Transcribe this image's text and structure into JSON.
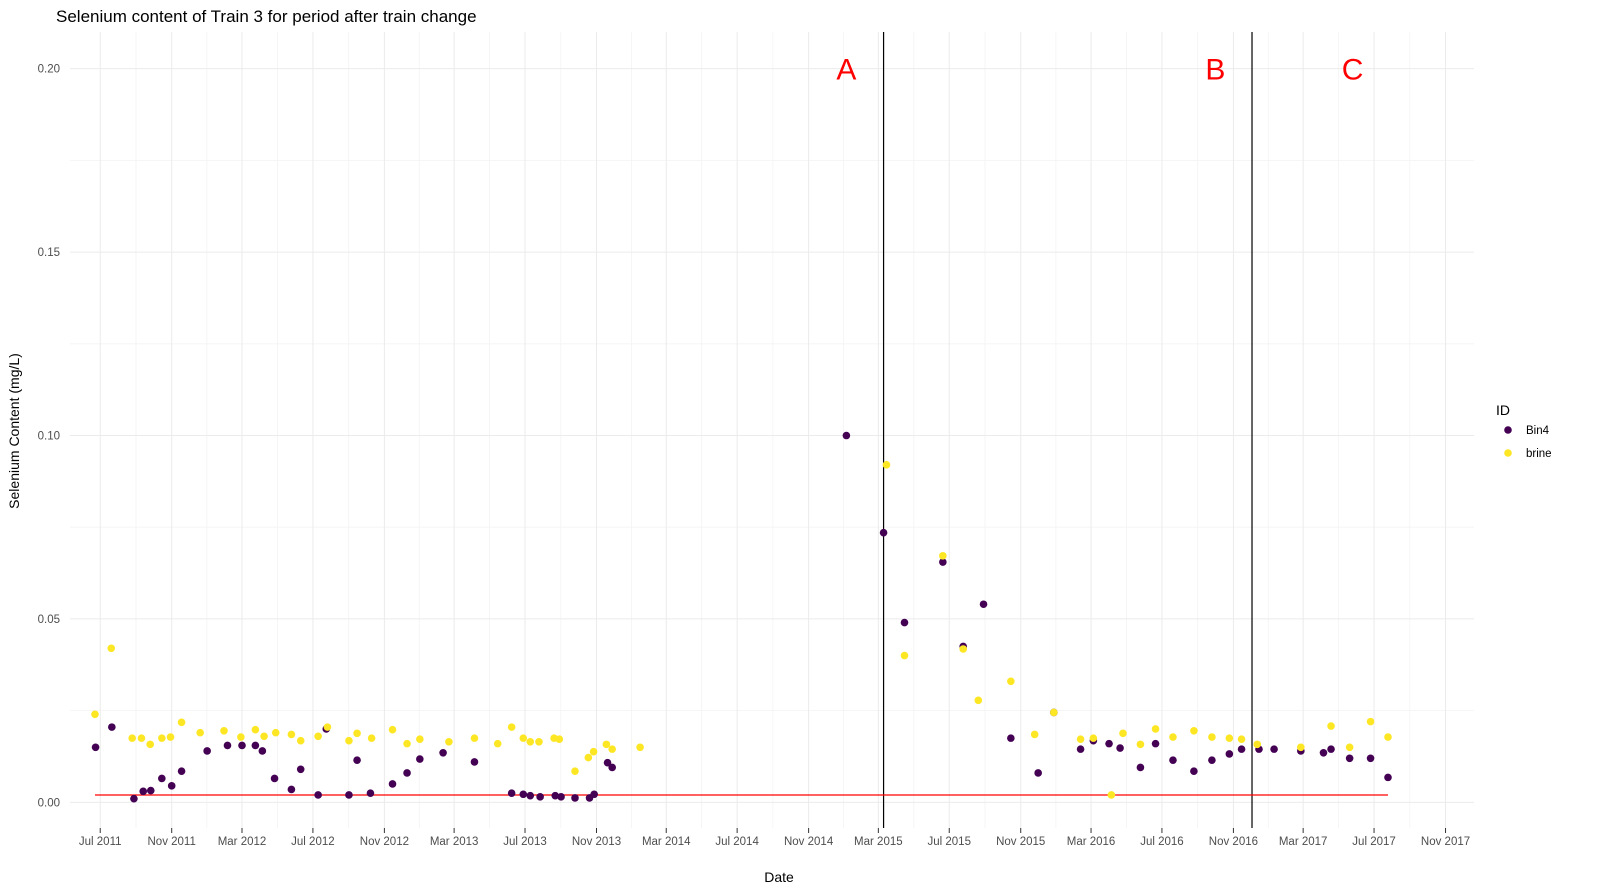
{
  "chart_data": {
    "type": "scatter",
    "title": "Selenium content of Train 3 for period after train change",
    "xlabel": "Date",
    "ylabel": "Selenium Content (mg/L)",
    "x_axis": {
      "kind": "date",
      "range": [
        "2011-05-10",
        "2017-12-20"
      ],
      "ticks": [
        "2011-07-01",
        "2011-11-01",
        "2012-03-01",
        "2012-07-01",
        "2012-11-01",
        "2013-03-01",
        "2013-07-01",
        "2013-11-01",
        "2014-03-01",
        "2014-07-01",
        "2014-11-01",
        "2015-03-01",
        "2015-07-01",
        "2015-11-01",
        "2016-03-01",
        "2016-07-01",
        "2016-11-01",
        "2017-03-01",
        "2017-07-01",
        "2017-11-01"
      ],
      "tick_labels": [
        "Jul 2011",
        "Nov 2011",
        "Mar 2012",
        "Jul 2012",
        "Nov 2012",
        "Mar 2013",
        "Jul 2013",
        "Nov 2013",
        "Mar 2014",
        "Jul 2014",
        "Nov 2014",
        "Mar 2015",
        "Jul 2015",
        "Nov 2015",
        "Mar 2016",
        "Jul 2016",
        "Nov 2016",
        "Mar 2017",
        "Jul 2017",
        "Nov 2017"
      ]
    },
    "y_axis": {
      "range": [
        -0.007,
        0.21
      ],
      "ticks": [
        0,
        0.05,
        0.1,
        0.15,
        0.2
      ],
      "tick_labels": [
        "0.00",
        "0.05",
        "0.10",
        "0.15",
        "0.20"
      ]
    },
    "grid": true,
    "legend": {
      "title": "ID",
      "position": "right",
      "entries": [
        {
          "label": "Bin4",
          "color": "#440154"
        },
        {
          "label": "brine",
          "color": "#FDE725"
        }
      ]
    },
    "series": [
      {
        "name": "Bin4",
        "color": "#440154",
        "points": [
          {
            "x": "2011-06-23",
            "y": 0.015
          },
          {
            "x": "2011-07-21",
            "y": 0.0205
          },
          {
            "x": "2011-08-28",
            "y": 0.001
          },
          {
            "x": "2011-09-13",
            "y": 0.003
          },
          {
            "x": "2011-09-26",
            "y": 0.0032
          },
          {
            "x": "2011-10-15",
            "y": 0.0065
          },
          {
            "x": "2011-11-01",
            "y": 0.0045
          },
          {
            "x": "2011-11-18",
            "y": 0.0085
          },
          {
            "x": "2012-01-01",
            "y": 0.014
          },
          {
            "x": "2012-02-05",
            "y": 0.0155
          },
          {
            "x": "2012-03-01",
            "y": 0.0155
          },
          {
            "x": "2012-03-24",
            "y": 0.0155
          },
          {
            "x": "2012-04-05",
            "y": 0.014
          },
          {
            "x": "2012-04-26",
            "y": 0.0065
          },
          {
            "x": "2012-05-25",
            "y": 0.0035
          },
          {
            "x": "2012-06-10",
            "y": 0.009
          },
          {
            "x": "2012-07-10",
            "y": 0.002
          },
          {
            "x": "2012-07-24",
            "y": 0.02
          },
          {
            "x": "2012-09-01",
            "y": 0.002
          },
          {
            "x": "2012-09-15",
            "y": 0.0115
          },
          {
            "x": "2012-10-08",
            "y": 0.0025
          },
          {
            "x": "2012-11-15",
            "y": 0.005
          },
          {
            "x": "2012-12-10",
            "y": 0.008
          },
          {
            "x": "2013-01-01",
            "y": 0.0118
          },
          {
            "x": "2013-02-10",
            "y": 0.0135
          },
          {
            "x": "2013-04-05",
            "y": 0.011
          },
          {
            "x": "2013-06-08",
            "y": 0.0025
          },
          {
            "x": "2013-06-28",
            "y": 0.0022
          },
          {
            "x": "2013-07-10",
            "y": 0.0018
          },
          {
            "x": "2013-07-27",
            "y": 0.0015
          },
          {
            "x": "2013-08-22",
            "y": 0.0018
          },
          {
            "x": "2013-09-01",
            "y": 0.0015
          },
          {
            "x": "2013-09-25",
            "y": 0.0012
          },
          {
            "x": "2013-10-20",
            "y": 0.0012
          },
          {
            "x": "2013-10-28",
            "y": 0.0022
          },
          {
            "x": "2013-11-20",
            "y": 0.0108
          },
          {
            "x": "2013-11-28",
            "y": 0.0095
          },
          {
            "x": "2015-01-05",
            "y": 0.1
          },
          {
            "x": "2015-03-10",
            "y": 0.0735
          },
          {
            "x": "2015-04-15",
            "y": 0.049
          },
          {
            "x": "2015-06-20",
            "y": 0.0655
          },
          {
            "x": "2015-07-25",
            "y": 0.0425
          },
          {
            "x": "2015-08-29",
            "y": 0.054
          },
          {
            "x": "2015-10-15",
            "y": 0.0175
          },
          {
            "x": "2015-12-01",
            "y": 0.008
          },
          {
            "x": "2015-12-28",
            "y": 0.0245
          },
          {
            "x": "2016-02-12",
            "y": 0.0145
          },
          {
            "x": "2016-03-05",
            "y": 0.0168
          },
          {
            "x": "2016-04-01",
            "y": 0.016
          },
          {
            "x": "2016-04-20",
            "y": 0.0148
          },
          {
            "x": "2016-05-25",
            "y": 0.0095
          },
          {
            "x": "2016-06-20",
            "y": 0.016
          },
          {
            "x": "2016-07-20",
            "y": 0.0115
          },
          {
            "x": "2016-08-25",
            "y": 0.0085
          },
          {
            "x": "2016-09-25",
            "y": 0.0115
          },
          {
            "x": "2016-10-25",
            "y": 0.0132
          },
          {
            "x": "2016-11-15",
            "y": 0.0145
          },
          {
            "x": "2016-12-15",
            "y": 0.0145
          },
          {
            "x": "2017-01-10",
            "y": 0.0145
          },
          {
            "x": "2017-02-25",
            "y": 0.014
          },
          {
            "x": "2017-04-05",
            "y": 0.0135
          },
          {
            "x": "2017-04-18",
            "y": 0.0145
          },
          {
            "x": "2017-05-20",
            "y": 0.012
          },
          {
            "x": "2017-06-25",
            "y": 0.012
          },
          {
            "x": "2017-07-25",
            "y": 0.0068
          }
        ]
      },
      {
        "name": "brine",
        "color": "#FDE725",
        "points": [
          {
            "x": "2011-06-22",
            "y": 0.024
          },
          {
            "x": "2011-07-20",
            "y": 0.042
          },
          {
            "x": "2011-08-25",
            "y": 0.0175
          },
          {
            "x": "2011-09-10",
            "y": 0.0175
          },
          {
            "x": "2011-09-25",
            "y": 0.0158
          },
          {
            "x": "2011-10-15",
            "y": 0.0175
          },
          {
            "x": "2011-10-30",
            "y": 0.0178
          },
          {
            "x": "2011-11-18",
            "y": 0.0218
          },
          {
            "x": "2011-12-20",
            "y": 0.019
          },
          {
            "x": "2012-01-30",
            "y": 0.0195
          },
          {
            "x": "2012-02-28",
            "y": 0.0178
          },
          {
            "x": "2012-03-24",
            "y": 0.0198
          },
          {
            "x": "2012-04-08",
            "y": 0.018
          },
          {
            "x": "2012-04-28",
            "y": 0.019
          },
          {
            "x": "2012-05-25",
            "y": 0.0185
          },
          {
            "x": "2012-06-10",
            "y": 0.0168
          },
          {
            "x": "2012-07-10",
            "y": 0.018
          },
          {
            "x": "2012-07-26",
            "y": 0.0205
          },
          {
            "x": "2012-09-01",
            "y": 0.0168
          },
          {
            "x": "2012-09-15",
            "y": 0.0188
          },
          {
            "x": "2012-10-10",
            "y": 0.0175
          },
          {
            "x": "2012-11-15",
            "y": 0.0198
          },
          {
            "x": "2012-12-10",
            "y": 0.016
          },
          {
            "x": "2013-01-01",
            "y": 0.0172
          },
          {
            "x": "2013-02-20",
            "y": 0.0165
          },
          {
            "x": "2013-04-05",
            "y": 0.0175
          },
          {
            "x": "2013-05-15",
            "y": 0.016
          },
          {
            "x": "2013-06-08",
            "y": 0.0205
          },
          {
            "x": "2013-06-28",
            "y": 0.0175
          },
          {
            "x": "2013-07-10",
            "y": 0.0165
          },
          {
            "x": "2013-07-25",
            "y": 0.0165
          },
          {
            "x": "2013-08-20",
            "y": 0.0175
          },
          {
            "x": "2013-08-29",
            "y": 0.0172
          },
          {
            "x": "2013-09-25",
            "y": 0.0085
          },
          {
            "x": "2013-10-18",
            "y": 0.0122
          },
          {
            "x": "2013-10-27",
            "y": 0.0138
          },
          {
            "x": "2013-11-18",
            "y": 0.0158
          },
          {
            "x": "2013-11-28",
            "y": 0.0145
          },
          {
            "x": "2014-01-15",
            "y": 0.015
          },
          {
            "x": "2015-03-15",
            "y": 0.092
          },
          {
            "x": "2015-04-15",
            "y": 0.04
          },
          {
            "x": "2015-06-20",
            "y": 0.0672
          },
          {
            "x": "2015-07-25",
            "y": 0.0418
          },
          {
            "x": "2015-08-20",
            "y": 0.0278
          },
          {
            "x": "2015-10-15",
            "y": 0.033
          },
          {
            "x": "2015-11-25",
            "y": 0.0185
          },
          {
            "x": "2015-12-28",
            "y": 0.0245
          },
          {
            "x": "2016-02-12",
            "y": 0.0172
          },
          {
            "x": "2016-03-05",
            "y": 0.0175
          },
          {
            "x": "2016-04-05",
            "y": 0.002
          },
          {
            "x": "2016-04-25",
            "y": 0.0188
          },
          {
            "x": "2016-05-25",
            "y": 0.0158
          },
          {
            "x": "2016-06-20",
            "y": 0.02
          },
          {
            "x": "2016-07-20",
            "y": 0.0178
          },
          {
            "x": "2016-08-25",
            "y": 0.0195
          },
          {
            "x": "2016-09-25",
            "y": 0.0178
          },
          {
            "x": "2016-10-25",
            "y": 0.0175
          },
          {
            "x": "2016-11-15",
            "y": 0.0172
          },
          {
            "x": "2016-12-12",
            "y": 0.0158
          },
          {
            "x": "2017-02-25",
            "y": 0.015
          },
          {
            "x": "2017-04-18",
            "y": 0.0208
          },
          {
            "x": "2017-05-20",
            "y": 0.015
          },
          {
            "x": "2017-06-25",
            "y": 0.022
          },
          {
            "x": "2017-07-25",
            "y": 0.0178
          }
        ]
      }
    ],
    "reference_line": {
      "y": 0.002,
      "x_start": "2011-06-22",
      "x_end": "2017-07-25",
      "color": "#FF0000"
    },
    "vertical_lines": [
      "2015-03-10",
      "2016-12-03"
    ],
    "annotations": [
      {
        "text": "A",
        "x": "2015-01-05",
        "y": 0.2,
        "color": "#FF0000"
      },
      {
        "text": "B",
        "x": "2016-10-01",
        "y": 0.2,
        "color": "#FF0000"
      },
      {
        "text": "C",
        "x": "2017-05-25",
        "y": 0.2,
        "color": "#FF0000"
      }
    ]
  }
}
